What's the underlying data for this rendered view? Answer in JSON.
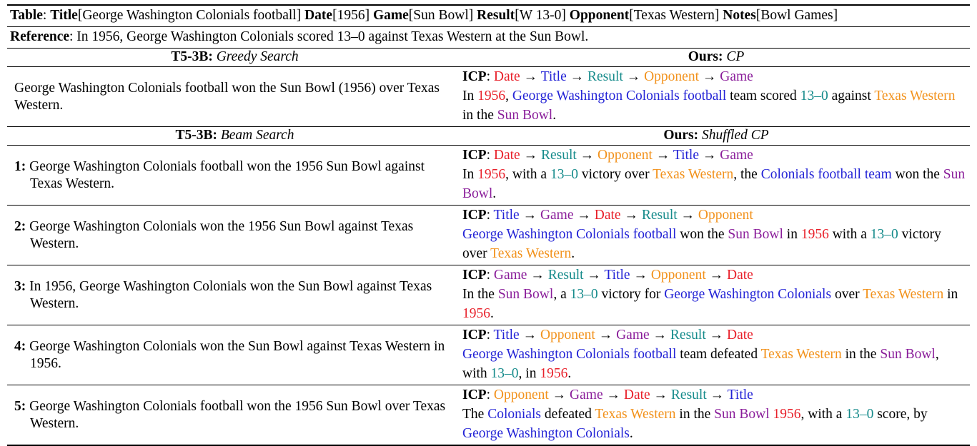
{
  "table_line": {
    "label": "Table",
    "fields": [
      {
        "name": "Title",
        "value": "George Washington Colonials football"
      },
      {
        "name": "Date",
        "value": "1956"
      },
      {
        "name": "Game",
        "value": "Sun Bowl"
      },
      {
        "name": "Result",
        "value": "W 13-0"
      },
      {
        "name": "Opponent",
        "value": "Texas Western"
      },
      {
        "name": "Notes",
        "value": "Bowl Games"
      }
    ]
  },
  "reference": {
    "label": "Reference",
    "text": "In 1956, George Washington Colonials scored 13–0 against Texas Western at the Sun Bowl."
  },
  "colors": {
    "Date": "#e8202a",
    "Title": "#2323d6",
    "Result": "#168b8b",
    "Opponent": "#f2921c",
    "Game": "#8a1d9a"
  },
  "sections": [
    {
      "left_header": {
        "bold": "T5-3B:",
        "italic": "Greedy Search"
      },
      "right_header": {
        "bold": "Ours:",
        "italic": "CP"
      },
      "rows": [
        {
          "left_text": "George Washington Colonials football won the Sun Bowl (1956) over Texas Western.",
          "icp_label": "ICP",
          "icp_order": [
            "Date",
            "Title",
            "Result",
            "Opponent",
            "Game"
          ],
          "output": [
            {
              "t": "In "
            },
            {
              "t": "1956",
              "c": "Date"
            },
            {
              "t": ", "
            },
            {
              "t": "George Washington Colonials football",
              "c": "Title"
            },
            {
              "t": " team scored "
            },
            {
              "t": "13–0",
              "c": "Result"
            },
            {
              "t": " against "
            },
            {
              "t": "Texas Western",
              "c": "Opponent"
            },
            {
              "t": " in the "
            },
            {
              "t": "Sun Bowl",
              "c": "Game"
            },
            {
              "t": "."
            }
          ]
        }
      ]
    },
    {
      "left_header": {
        "bold": "T5-3B:",
        "italic": "Beam Search"
      },
      "right_header": {
        "bold": "Ours:",
        "italic": "Shuffled CP"
      },
      "rows": [
        {
          "left_num": "1:",
          "left_text": "George Washington Colonials football won the 1956 Sun Bowl against Texas Western.",
          "icp_label": "ICP",
          "icp_order": [
            "Date",
            "Result",
            "Opponent",
            "Title",
            "Game"
          ],
          "output": [
            {
              "t": "In "
            },
            {
              "t": "1956",
              "c": "Date"
            },
            {
              "t": ", with a "
            },
            {
              "t": "13–0",
              "c": "Result"
            },
            {
              "t": " victory over "
            },
            {
              "t": "Texas Western",
              "c": "Opponent"
            },
            {
              "t": ", the "
            },
            {
              "t": "Colonials football team",
              "c": "Title"
            },
            {
              "t": " won the "
            },
            {
              "t": "Sun Bowl",
              "c": "Game"
            },
            {
              "t": "."
            }
          ]
        },
        {
          "left_num": "2:",
          "left_text": "George Washington Colonials won the 1956 Sun Bowl against Texas Western.",
          "icp_label": "ICP",
          "icp_order": [
            "Title",
            "Game",
            "Date",
            "Result",
            "Opponent"
          ],
          "output": [
            {
              "t": "George Washington Colonials football",
              "c": "Title"
            },
            {
              "t": " won the "
            },
            {
              "t": "Sun Bowl",
              "c": "Game"
            },
            {
              "t": " in "
            },
            {
              "t": "1956",
              "c": "Date"
            },
            {
              "t": " with a "
            },
            {
              "t": "13–0",
              "c": "Result"
            },
            {
              "t": " victory over "
            },
            {
              "t": "Texas Western",
              "c": "Opponent"
            },
            {
              "t": "."
            }
          ]
        },
        {
          "left_num": "3:",
          "left_text": "In 1956, George Washington Colonials won the Sun Bowl against Texas Western.",
          "icp_label": "ICP",
          "icp_order": [
            "Game",
            "Result",
            "Title",
            "Opponent",
            "Date"
          ],
          "output": [
            {
              "t": "In the "
            },
            {
              "t": "Sun Bowl",
              "c": "Game"
            },
            {
              "t": ", a "
            },
            {
              "t": "13–0",
              "c": "Result"
            },
            {
              "t": " victory for "
            },
            {
              "t": "George Washington Colonials",
              "c": "Title"
            },
            {
              "t": " over "
            },
            {
              "t": "Texas Western",
              "c": "Opponent"
            },
            {
              "t": " in "
            },
            {
              "t": "1956",
              "c": "Date"
            },
            {
              "t": "."
            }
          ]
        },
        {
          "left_num": "4:",
          "left_text": "George Washington Colonials won the Sun Bowl against Texas Western in 1956.",
          "icp_label": "ICP",
          "icp_order": [
            "Title",
            "Opponent",
            "Game",
            "Result",
            "Date"
          ],
          "output": [
            {
              "t": "George Washington Colonials football",
              "c": "Title"
            },
            {
              "t": " team defeated "
            },
            {
              "t": "Texas Western",
              "c": "Opponent"
            },
            {
              "t": " in the "
            },
            {
              "t": "Sun Bowl",
              "c": "Game"
            },
            {
              "t": ", with "
            },
            {
              "t": "13–0",
              "c": "Result"
            },
            {
              "t": ", in "
            },
            {
              "t": "1956",
              "c": "Date"
            },
            {
              "t": "."
            }
          ]
        },
        {
          "left_num": "5:",
          "left_text": "George Washington Colonials football won the 1956 Sun Bowl over Texas Western.",
          "icp_label": "ICP",
          "icp_order": [
            "Opponent",
            "Game",
            "Date",
            "Result",
            "Title"
          ],
          "output": [
            {
              "t": "The "
            },
            {
              "t": "Colonials",
              "c": "Title"
            },
            {
              "t": " defeated "
            },
            {
              "t": "Texas Western",
              "c": "Opponent"
            },
            {
              "t": " in the "
            },
            {
              "t": "Sun Bowl",
              "c": "Game"
            },
            {
              "t": " "
            },
            {
              "t": "1956",
              "c": "Date"
            },
            {
              "t": ", with a "
            },
            {
              "t": "13–0",
              "c": "Result"
            },
            {
              "t": " score, by "
            },
            {
              "t": "George Washington Colonials",
              "c": "Title"
            },
            {
              "t": "."
            }
          ]
        }
      ]
    }
  ]
}
